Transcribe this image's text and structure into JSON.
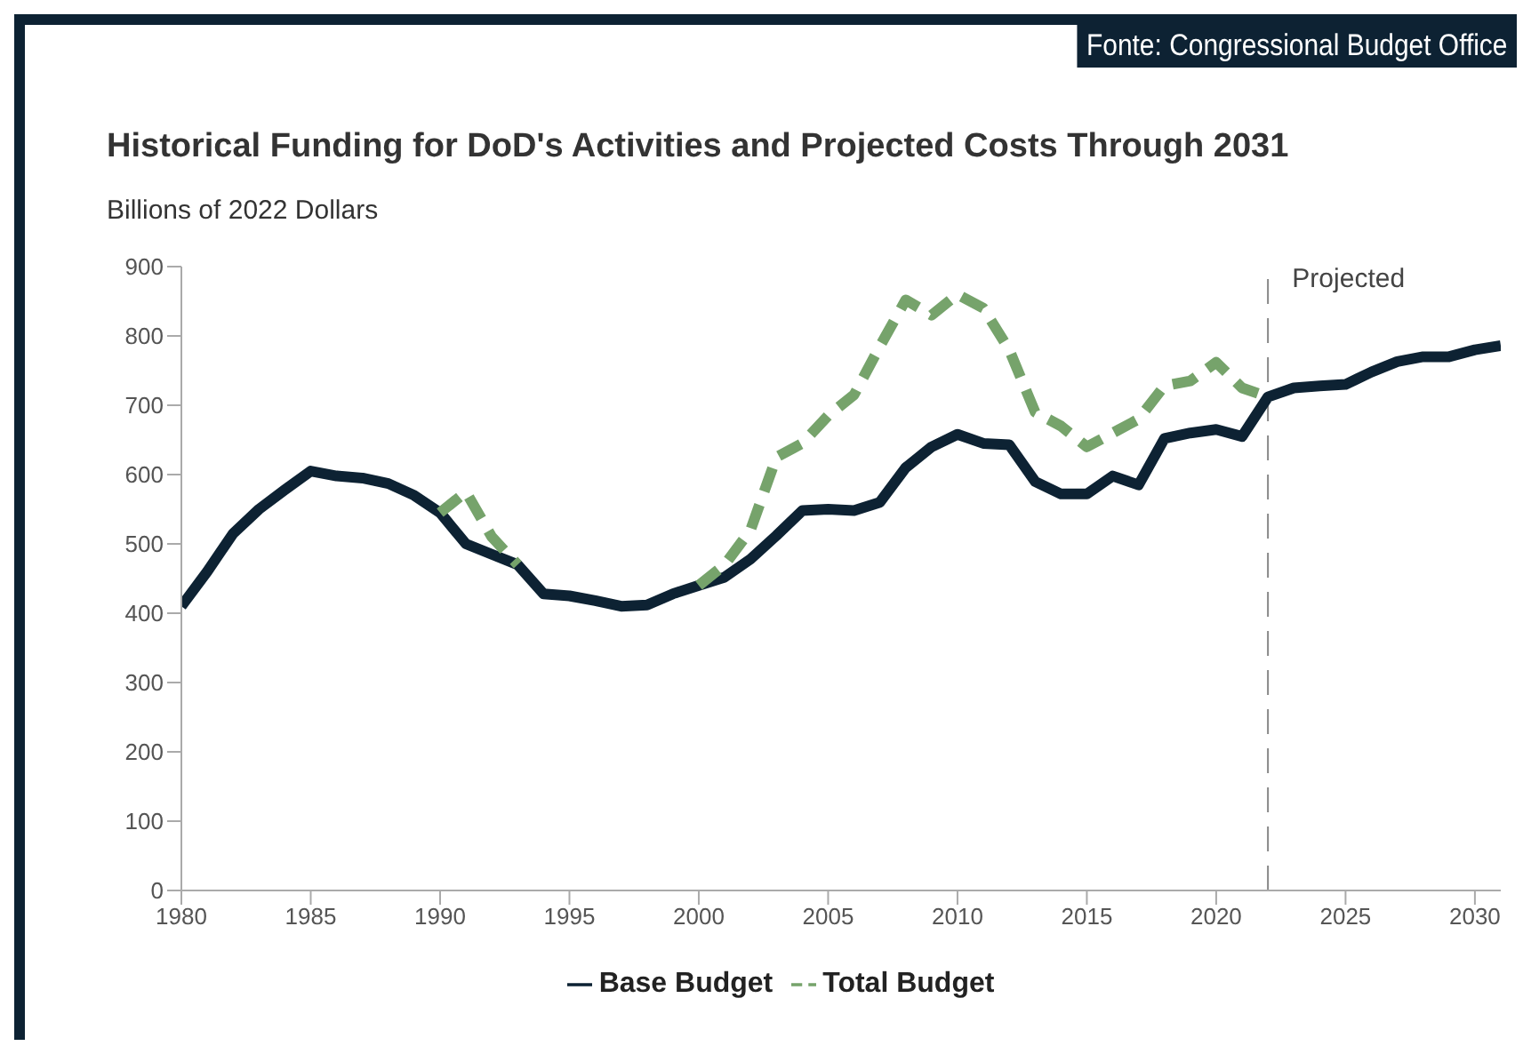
{
  "chart_data": {
    "type": "line",
    "title": "Historical Funding for DoD's Activities and Projected Costs Through 2031",
    "ylabel": "Billions of 2022 Dollars",
    "annotations": [
      "Fonte: Congressional Budget Office"
    ],
    "x": [
      1980,
      1981,
      1982,
      1983,
      1984,
      1985,
      1986,
      1987,
      1988,
      1989,
      1990,
      1991,
      1992,
      1993,
      1994,
      1995,
      1996,
      1997,
      1998,
      1999,
      2000,
      2001,
      2002,
      2003,
      2004,
      2005,
      2006,
      2007,
      2008,
      2009,
      2010,
      2011,
      2012,
      2013,
      2014,
      2015,
      2016,
      2017,
      2018,
      2019,
      2020,
      2021,
      2022,
      2023,
      2024,
      2025,
      2026,
      2027,
      2028,
      2029,
      2030,
      2031
    ],
    "series": [
      {
        "name": "Base Budget",
        "color": "#0d2233",
        "line_style": "solid",
        "values": [
          410,
          460,
          515,
          550,
          578,
          605,
          598,
          595,
          587,
          570,
          545,
          500,
          485,
          470,
          428,
          425,
          418,
          410,
          412,
          428,
          440,
          452,
          478,
          512,
          548,
          550,
          548,
          560,
          610,
          640,
          658,
          645,
          643,
          590,
          572,
          572,
          598,
          585,
          652,
          660,
          665,
          655,
          712,
          725,
          728,
          730,
          748,
          763,
          770,
          770,
          780,
          786
        ]
      },
      {
        "name": "Total Budget",
        "color": "#76a36b",
        "line_style": "dashed",
        "values": [
          null,
          null,
          null,
          null,
          null,
          null,
          null,
          null,
          null,
          null,
          545,
          575,
          510,
          470,
          null,
          null,
          null,
          null,
          null,
          null,
          440,
          470,
          520,
          625,
          645,
          685,
          715,
          785,
          852,
          830,
          860,
          840,
          780,
          690,
          670,
          640,
          660,
          680,
          728,
          735,
          762,
          725,
          712,
          null,
          null,
          null,
          null,
          null,
          null,
          null,
          null,
          null
        ]
      }
    ],
    "xlim": [
      1980,
      2031
    ],
    "xticks": [
      1980,
      1985,
      1990,
      1995,
      2000,
      2005,
      2010,
      2015,
      2020,
      2025,
      2030
    ],
    "ylim": [
      0,
      900
    ],
    "yticks": [
      0,
      100,
      200,
      300,
      400,
      500,
      600,
      700,
      800,
      900
    ],
    "ref_lines": [
      {
        "axis": "x",
        "value": 2022,
        "label": "Projected",
        "color": "#888888",
        "line_style": "dashed"
      }
    ],
    "grid": false,
    "legend": "bottom",
    "marker": "none"
  }
}
